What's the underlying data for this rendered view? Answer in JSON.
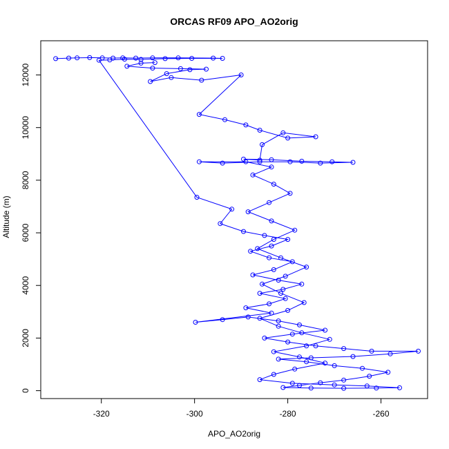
{
  "chart_data": {
    "type": "scatter",
    "title": "ORCAS RF09 APO_AO2orig",
    "xlabel": "APO_AO2orig",
    "ylabel": "Altitude (m)",
    "xlim": [
      -333.0,
      -250.0
    ],
    "ylim": [
      -300,
      13300
    ],
    "x_ticks": [
      -320,
      -300,
      -280,
      -260
    ],
    "y_ticks": [
      0,
      2000,
      4000,
      6000,
      8000,
      10000,
      12000
    ],
    "x_tick_labels": [
      "-320",
      "-300",
      "-280",
      "-260"
    ],
    "y_tick_labels": [
      "0",
      "2000",
      "4000",
      "6000",
      "8000",
      "10000",
      "12000"
    ],
    "series_color": "#0000ff",
    "marker": "open-circle",
    "connected": true,
    "grid": false,
    "series": [
      {
        "values_note": "x = APO_AO2orig, y = altitude (m); points connected in flight order",
        "points": [
          [
            -329.8,
            12620
          ],
          [
            -327.0,
            12640
          ],
          [
            -325.2,
            12650
          ],
          [
            -322.5,
            12660
          ],
          [
            -319.8,
            12650
          ],
          [
            -317.5,
            12640
          ],
          [
            -315.4,
            12650
          ],
          [
            -312.6,
            12640
          ],
          [
            -309.0,
            12650
          ],
          [
            -303.5,
            12650
          ],
          [
            -296.0,
            12640
          ],
          [
            -294.0,
            12630
          ],
          [
            -300.6,
            12630
          ],
          [
            -306.3,
            12620
          ],
          [
            -311.5,
            12590
          ],
          [
            -315.0,
            12600
          ],
          [
            -318.2,
            12570
          ],
          [
            -320.5,
            12560
          ],
          [
            -299.5,
            7350
          ],
          [
            -292.0,
            6900
          ],
          [
            -294.5,
            6350
          ],
          [
            -289.5,
            6050
          ],
          [
            -285.0,
            5900
          ],
          [
            -280.0,
            5750
          ],
          [
            -283.5,
            5500
          ],
          [
            -288.0,
            5300
          ],
          [
            -284.0,
            5050
          ],
          [
            -279.0,
            4900
          ],
          [
            -283.0,
            4600
          ],
          [
            -287.5,
            4400
          ],
          [
            -282.0,
            4200
          ],
          [
            -277.0,
            4050
          ],
          [
            -281.0,
            3850
          ],
          [
            -286.0,
            3700
          ],
          [
            -280.5,
            3500
          ],
          [
            -284.0,
            3300
          ],
          [
            -289.0,
            3150
          ],
          [
            -283.5,
            2950
          ],
          [
            -299.8,
            2600
          ],
          [
            -294.0,
            2700
          ],
          [
            -288.5,
            2800
          ],
          [
            -282.0,
            2650
          ],
          [
            -277.5,
            2500
          ],
          [
            -272.0,
            2300
          ],
          [
            -279.0,
            2150
          ],
          [
            -285.0,
            2000
          ],
          [
            -280.0,
            1850
          ],
          [
            -274.0,
            1700
          ],
          [
            -268.0,
            1600
          ],
          [
            -262.0,
            1500
          ],
          [
            -252.0,
            1500
          ],
          [
            -258.0,
            1400
          ],
          [
            -266.0,
            1300
          ],
          [
            -275.0,
            1250
          ],
          [
            -282.0,
            1200
          ],
          [
            -276.0,
            1100
          ],
          [
            -270.0,
            950
          ],
          [
            -264.0,
            850
          ],
          [
            -258.5,
            700
          ],
          [
            -262.5,
            550
          ],
          [
            -268.0,
            400
          ],
          [
            -273.0,
            300
          ],
          [
            -277.5,
            200
          ],
          [
            -281.0,
            120
          ],
          [
            -275.0,
            100
          ],
          [
            -268.0,
            90
          ],
          [
            -261.0,
            100
          ],
          [
            -256.0,
            110
          ],
          [
            -263.0,
            180
          ],
          [
            -270.0,
            220
          ],
          [
            -279.0,
            280
          ],
          [
            -286.0,
            420
          ],
          [
            -283.0,
            620
          ],
          [
            -278.5,
            820
          ],
          [
            -272.0,
            1050
          ],
          [
            -277.5,
            1280
          ],
          [
            -283.0,
            1480
          ],
          [
            -276.0,
            1700
          ],
          [
            -271.0,
            1950
          ],
          [
            -277.0,
            2200
          ],
          [
            -282.0,
            2450
          ],
          [
            -286.0,
            2750
          ],
          [
            -280.0,
            3050
          ],
          [
            -276.5,
            3350
          ],
          [
            -281.5,
            3700
          ],
          [
            -285.5,
            4050
          ],
          [
            -280.5,
            4350
          ],
          [
            -276.0,
            4700
          ],
          [
            -281.5,
            5050
          ],
          [
            -286.5,
            5400
          ],
          [
            -283.0,
            5750
          ],
          [
            -278.5,
            6100
          ],
          [
            -283.5,
            6450
          ],
          [
            -288.5,
            6800
          ],
          [
            -284.0,
            7150
          ],
          [
            -279.5,
            7500
          ],
          [
            -283.0,
            7850
          ],
          [
            -287.5,
            8200
          ],
          [
            -283.5,
            8500
          ],
          [
            -289.0,
            8700
          ],
          [
            -299.0,
            8700
          ],
          [
            -294.0,
            8650
          ],
          [
            -286.0,
            8700
          ],
          [
            -279.5,
            8700
          ],
          [
            -273.0,
            8650
          ],
          [
            -266.0,
            8680
          ],
          [
            -270.5,
            8700
          ],
          [
            -277.0,
            8720
          ],
          [
            -283.5,
            8780
          ],
          [
            -289.5,
            8800
          ],
          [
            -286.0,
            8760
          ],
          [
            -285.5,
            9350
          ],
          [
            -281.0,
            9800
          ],
          [
            -274.0,
            9650
          ],
          [
            -280.0,
            9600
          ],
          [
            -286.0,
            9900
          ],
          [
            -289.0,
            10100
          ],
          [
            -293.5,
            10300
          ],
          [
            -299.0,
            10500
          ],
          [
            -290.0,
            12000
          ],
          [
            -298.5,
            11800
          ],
          [
            -305.0,
            11900
          ],
          [
            -309.5,
            11750
          ],
          [
            -306.0,
            12050
          ],
          [
            -301.0,
            12200
          ],
          [
            -297.5,
            12220
          ],
          [
            -303.0,
            12240
          ],
          [
            -309.0,
            12260
          ],
          [
            -314.5,
            12330
          ],
          [
            -311.5,
            12450
          ],
          [
            -308.5,
            12470
          ]
        ]
      }
    ]
  }
}
